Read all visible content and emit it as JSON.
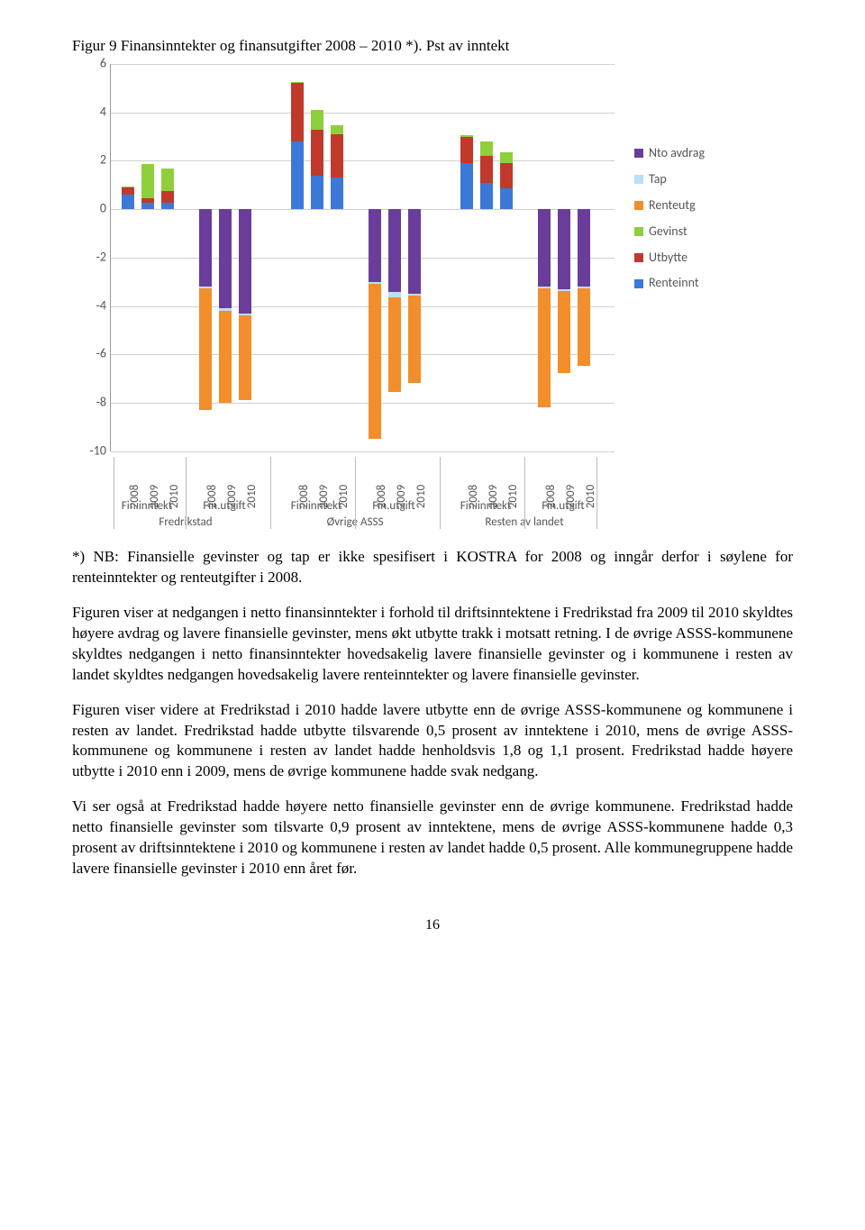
{
  "figure_title": "Figur 9 Finansinntekter og finansutgifter 2008 – 2010 *). Pst av inntekt",
  "chart": {
    "type": "stacked-bar",
    "ylim": [
      -10,
      6
    ],
    "ytick_step": 2,
    "yticks": [
      6,
      4,
      2,
      0,
      -2,
      -4,
      -6,
      -8,
      -10
    ],
    "grid_color": "#d0d0d0",
    "background_color": "#ffffff",
    "axis_color": "#999999",
    "label_fontsize": 14,
    "tick_fontsize": 13,
    "colors": {
      "Nto avdrag": "#6a3d9a",
      "Tap": "#b8e0f7",
      "Renteutg": "#f28e2b",
      "Gevinst": "#8fcf3c",
      "Utbytte": "#c0392b",
      "Renteinnt": "#3c78d8"
    },
    "legend": [
      "Nto avdrag",
      "Tap",
      "Renteutg",
      "Gevinst",
      "Utbytte",
      "Renteinnt"
    ],
    "groups": [
      {
        "region": "Fredrikstad",
        "sub": "Fin.inntekt",
        "bars": [
          {
            "year": "2008",
            "pos": [
              {
                "k": "Renteinnt",
                "v": 0.6
              },
              {
                "k": "Utbytte",
                "v": 0.3
              },
              {
                "k": "Gevinst",
                "v": 0.05
              }
            ],
            "neg": []
          },
          {
            "year": "2009",
            "pos": [
              {
                "k": "Renteinnt",
                "v": 0.25
              },
              {
                "k": "Utbytte",
                "v": 0.2
              },
              {
                "k": "Gevinst",
                "v": 1.4
              }
            ],
            "neg": []
          },
          {
            "year": "2010",
            "pos": [
              {
                "k": "Renteinnt",
                "v": 0.25
              },
              {
                "k": "Utbytte",
                "v": 0.5
              },
              {
                "k": "Gevinst",
                "v": 0.95
              }
            ],
            "neg": []
          }
        ]
      },
      {
        "region": "Fredrikstad",
        "sub": "Fin.utgift",
        "bars": [
          {
            "year": "2008",
            "pos": [],
            "neg": [
              {
                "k": "Nto avdrag",
                "v": 3.2
              },
              {
                "k": "Tap",
                "v": 0.08
              },
              {
                "k": "Renteutg",
                "v": 5.0
              }
            ]
          },
          {
            "year": "2009",
            "pos": [],
            "neg": [
              {
                "k": "Nto avdrag",
                "v": 4.1
              },
              {
                "k": "Tap",
                "v": 0.08
              },
              {
                "k": "Renteutg",
                "v": 3.8
              }
            ]
          },
          {
            "year": "2010",
            "pos": [],
            "neg": [
              {
                "k": "Nto avdrag",
                "v": 4.3
              },
              {
                "k": "Tap",
                "v": 0.08
              },
              {
                "k": "Renteutg",
                "v": 3.5
              }
            ]
          }
        ]
      },
      {
        "region": "Øvrige ASSS",
        "sub": "Fin.inntekt",
        "bars": [
          {
            "year": "2008",
            "pos": [
              {
                "k": "Renteinnt",
                "v": 2.8
              },
              {
                "k": "Utbytte",
                "v": 2.4
              },
              {
                "k": "Gevinst",
                "v": 0.05
              }
            ],
            "neg": []
          },
          {
            "year": "2009",
            "pos": [
              {
                "k": "Renteinnt",
                "v": 1.4
              },
              {
                "k": "Utbytte",
                "v": 1.9
              },
              {
                "k": "Gevinst",
                "v": 0.8
              }
            ],
            "neg": []
          },
          {
            "year": "2010",
            "pos": [
              {
                "k": "Renteinnt",
                "v": 1.3
              },
              {
                "k": "Utbytte",
                "v": 1.8
              },
              {
                "k": "Gevinst",
                "v": 0.35
              }
            ],
            "neg": []
          }
        ]
      },
      {
        "region": "Øvrige ASSS",
        "sub": "Fin.utgift",
        "bars": [
          {
            "year": "2008",
            "pos": [],
            "neg": [
              {
                "k": "Nto avdrag",
                "v": 3.0
              },
              {
                "k": "Tap",
                "v": 0.08
              },
              {
                "k": "Renteutg",
                "v": 6.4
              }
            ]
          },
          {
            "year": "2009",
            "pos": [],
            "neg": [
              {
                "k": "Nto avdrag",
                "v": 3.4
              },
              {
                "k": "Tap",
                "v": 0.25
              },
              {
                "k": "Renteutg",
                "v": 3.9
              }
            ]
          },
          {
            "year": "2010",
            "pos": [],
            "neg": [
              {
                "k": "Nto avdrag",
                "v": 3.5
              },
              {
                "k": "Tap",
                "v": 0.08
              },
              {
                "k": "Renteutg",
                "v": 3.6
              }
            ]
          }
        ]
      },
      {
        "region": "Resten av landet",
        "sub": "Fin.inntekt",
        "bars": [
          {
            "year": "2008",
            "pos": [
              {
                "k": "Renteinnt",
                "v": 1.9
              },
              {
                "k": "Utbytte",
                "v": 1.1
              },
              {
                "k": "Gevinst",
                "v": 0.05
              }
            ],
            "neg": []
          },
          {
            "year": "2009",
            "pos": [
              {
                "k": "Renteinnt",
                "v": 1.1
              },
              {
                "k": "Utbytte",
                "v": 1.1
              },
              {
                "k": "Gevinst",
                "v": 0.6
              }
            ],
            "neg": []
          },
          {
            "year": "2010",
            "pos": [
              {
                "k": "Renteinnt",
                "v": 0.85
              },
              {
                "k": "Utbytte",
                "v": 1.05
              },
              {
                "k": "Gevinst",
                "v": 0.45
              }
            ],
            "neg": []
          }
        ]
      },
      {
        "region": "Resten av landet",
        "sub": "Fin.utgift",
        "bars": [
          {
            "year": "2008",
            "pos": [],
            "neg": [
              {
                "k": "Nto avdrag",
                "v": 3.2
              },
              {
                "k": "Tap",
                "v": 0.08
              },
              {
                "k": "Renteutg",
                "v": 4.9
              }
            ]
          },
          {
            "year": "2009",
            "pos": [],
            "neg": [
              {
                "k": "Nto avdrag",
                "v": 3.3
              },
              {
                "k": "Tap",
                "v": 0.08
              },
              {
                "k": "Renteutg",
                "v": 3.4
              }
            ]
          },
          {
            "year": "2010",
            "pos": [],
            "neg": [
              {
                "k": "Nto avdrag",
                "v": 3.2
              },
              {
                "k": "Tap",
                "v": 0.08
              },
              {
                "k": "Renteutg",
                "v": 3.2
              }
            ]
          }
        ]
      }
    ],
    "sub_labels_row1": [
      "Fin.inntekt",
      "Fin.utgift",
      "Fin.inntekt",
      "Fin.utgift",
      "Fin.inntekt",
      "Fin.utgift"
    ],
    "region_labels": [
      "Fredrikstad",
      "Øvrige ASSS",
      "Resten av landet"
    ]
  },
  "note": "*) NB: Finansielle gevinster og tap er ikke spesifisert i KOSTRA for 2008 og inngår derfor i søylene for renteinntekter og renteutgifter i 2008.",
  "paragraphs": [
    "Figuren viser at nedgangen i netto finansinntekter i forhold til driftsinntektene i Fredrikstad fra 2009 til 2010 skyldtes høyere avdrag og lavere finansielle gevinster, mens økt utbytte trakk i motsatt retning. I de øvrige ASSS-kommunene skyldtes nedgangen i netto finansinntekter hovedsakelig lavere finansielle gevinster og i kommunene i resten av landet skyldtes nedgangen hovedsakelig lavere renteinntekter og lavere finansielle gevinster.",
    "Figuren viser videre at Fredrikstad i 2010 hadde lavere utbytte enn de øvrige ASSS-kommunene og kommunene i resten av landet. Fredrikstad hadde utbytte tilsvarende 0,5 prosent av inntektene i 2010, mens de øvrige ASSS-kommunene og kommunene i resten av landet hadde henholdsvis 1,8 og 1,1 prosent. Fredrikstad hadde høyere utbytte i 2010 enn i 2009, mens de øvrige kommunene hadde svak nedgang.",
    "Vi ser også at Fredrikstad hadde høyere netto finansielle gevinster enn de øvrige kommunene. Fredrikstad hadde netto finansielle gevinster som tilsvarte 0,9 prosent av inntektene, mens de øvrige ASSS-kommunene hadde 0,3 prosent av driftsinntektene i 2010 og kommunene i resten av landet hadde 0,5 prosent. Alle kommunegruppene hadde lavere finansielle gevinster i 2010 enn året før."
  ],
  "page_number": "16"
}
